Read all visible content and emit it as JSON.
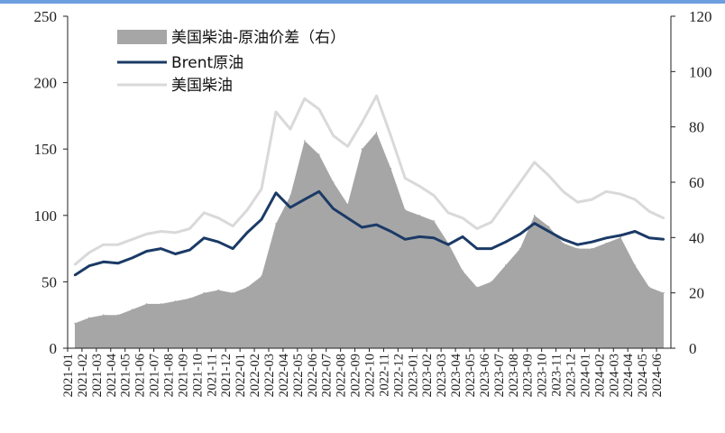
{
  "chart_data": {
    "type": "area+line",
    "title": "",
    "legend": {
      "placement": "top-left",
      "entries": [
        "美国柴油-原油价差（右）",
        "Brent原油",
        "美国柴油"
      ]
    },
    "left_axis": {
      "ylim": [
        0,
        250
      ],
      "ticks": [
        "0",
        "50",
        "100",
        "150",
        "200",
        "250"
      ]
    },
    "right_axis": {
      "ylim": [
        0,
        120
      ],
      "ticks": [
        "0",
        "20",
        "40",
        "60",
        "80",
        "100",
        "120"
      ]
    },
    "x": [
      "2021-01",
      "2021-02",
      "2021-03",
      "2021-04",
      "2021-05",
      "2021-06",
      "2021-07",
      "2021-08",
      "2021-09",
      "2021-10",
      "2021-11",
      "2021-12",
      "2022-01",
      "2022-02",
      "2022-03",
      "2022-04",
      "2022-05",
      "2022-06",
      "2022-07",
      "2022-08",
      "2022-09",
      "2022-10",
      "2022-11",
      "2022-12",
      "2023-01",
      "2023-02",
      "2023-03",
      "2023-04",
      "2023-05",
      "2023-06",
      "2023-07",
      "2023-08",
      "2023-09",
      "2023-10",
      "2023-11",
      "2023-12",
      "2024-01",
      "2024-02",
      "2024-03",
      "2024-04",
      "2024-05",
      "2024-06"
    ],
    "x_tick_labels": [
      "2021-01",
      "2021-02",
      "2021-03",
      "2021-04",
      "2021-05",
      "2021-06",
      "2021-07",
      "2021-08",
      "2021-09",
      "2021-10",
      "2021-11",
      "2021-12",
      "2022-01",
      "2022-02",
      "2022-03",
      "2022-04",
      "2022-05",
      "2022-06",
      "2022-07",
      "2022-08",
      "2022-09",
      "2022-10",
      "2022-11",
      "2022-12",
      "2023-01",
      "2023-02",
      "2023-03",
      "2023-04",
      "2023-05",
      "2023-06",
      "2023-07",
      "2023-08",
      "2023-09",
      "2023-10",
      "2023-11",
      "2023-12",
      "2024-01",
      "2024-02",
      "2024-03",
      "2024-04",
      "2024-05",
      "2024-06"
    ],
    "series": [
      {
        "name": "美国柴油-原油价差（右）",
        "axis": "right",
        "style": "area",
        "color": "#a6a6a6",
        "values": [
          9,
          11,
          12,
          12,
          14,
          16,
          16,
          17,
          18,
          20,
          21,
          20,
          22,
          26,
          45,
          55,
          75,
          70,
          60,
          52,
          72,
          78,
          65,
          50,
          48,
          46,
          38,
          28,
          22,
          24,
          30,
          36,
          48,
          44,
          38,
          36,
          36,
          38,
          40,
          30,
          22,
          20
        ]
      },
      {
        "name": "Brent原油",
        "axis": "left",
        "style": "line",
        "color": "#1b3a66",
        "values": [
          55,
          62,
          65,
          64,
          68,
          73,
          75,
          71,
          74,
          83,
          80,
          75,
          87,
          97,
          117,
          106,
          112,
          118,
          105,
          98,
          91,
          93,
          88,
          82,
          84,
          83,
          78,
          84,
          75,
          75,
          80,
          86,
          94,
          88,
          82,
          78,
          80,
          83,
          85,
          88,
          83,
          82
        ]
      },
      {
        "name": "美国柴油",
        "axis": "left",
        "style": "line",
        "color": "#d9d9d9",
        "values": [
          63,
          72,
          78,
          78,
          82,
          86,
          88,
          87,
          90,
          102,
          98,
          92,
          104,
          120,
          178,
          165,
          188,
          180,
          160,
          152,
          170,
          190,
          160,
          128,
          122,
          115,
          102,
          98,
          90,
          95,
          110,
          125,
          140,
          130,
          118,
          110,
          112,
          118,
          116,
          112,
          103,
          98
        ]
      }
    ]
  }
}
